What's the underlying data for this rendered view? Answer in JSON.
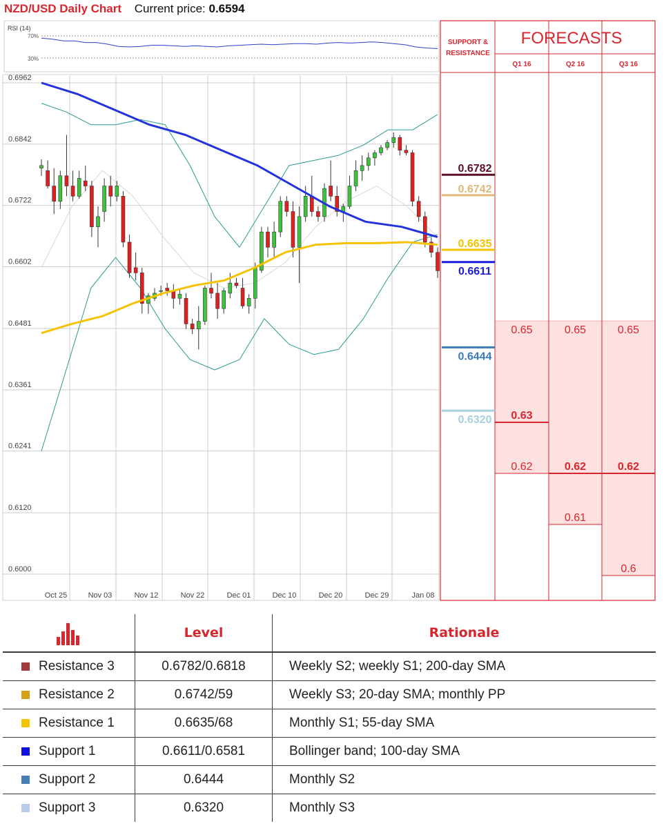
{
  "header": {
    "title": "NZD/USD Daily Chart",
    "price_label": "Current price:",
    "price_value": "0.6594"
  },
  "rsi": {
    "title": "RSI (14)",
    "top_label": "70%",
    "bottom_label": "30%",
    "values": [
      66,
      64,
      61,
      61,
      58,
      58,
      55,
      51,
      50,
      51,
      53,
      53,
      52,
      51,
      52,
      51,
      50,
      52,
      53,
      54,
      55,
      54,
      55,
      56,
      56,
      55,
      57,
      58,
      57,
      58,
      59,
      58,
      56,
      54,
      50,
      48,
      47
    ]
  },
  "columns": {
    "sr_title_1": "SUPPORT &",
    "sr_title_2": "RESISTANCE",
    "forecast_title": "FORECASTS",
    "quarters": [
      "Q1 16",
      "Q2 16",
      "Q3 16"
    ]
  },
  "colors": {
    "accent": "#d7262e",
    "up_candle": "#3dc43d",
    "down_candle": "#e02020",
    "sma200": "#2233dd",
    "sma55": "#f5c200",
    "bollinger": "#2a9a8e",
    "forecast_fill": "#fde0e0"
  },
  "chart_data": {
    "type": "candlestick",
    "x_tick_labels": [
      "Oct 25",
      "Nov 03",
      "Nov 12",
      "Nov 22",
      "Dec 01",
      "Dec 10",
      "Dec 20",
      "Dec 29",
      "Jan 08"
    ],
    "y_tick_labels": [
      "0.6962",
      "0.6842",
      "0.6722",
      "0.6602",
      "0.6481",
      "0.6361",
      "0.6241",
      "0.6120",
      "0.6000"
    ],
    "ylim": [
      0.6,
      0.6962
    ],
    "grid": true,
    "ohlc": [
      [
        0.6795,
        0.6812,
        0.678,
        0.68
      ],
      [
        0.679,
        0.681,
        0.6755,
        0.676
      ],
      [
        0.676,
        0.6795,
        0.6705,
        0.673
      ],
      [
        0.673,
        0.679,
        0.6715,
        0.678
      ],
      [
        0.678,
        0.686,
        0.674,
        0.676
      ],
      [
        0.676,
        0.679,
        0.673,
        0.674
      ],
      [
        0.674,
        0.679,
        0.6735,
        0.6775
      ],
      [
        0.677,
        0.68,
        0.675,
        0.676
      ],
      [
        0.676,
        0.677,
        0.666,
        0.668
      ],
      [
        0.668,
        0.672,
        0.664,
        0.67
      ],
      [
        0.671,
        0.6775,
        0.669,
        0.676
      ],
      [
        0.676,
        0.678,
        0.672,
        0.674
      ],
      [
        0.674,
        0.677,
        0.673,
        0.676
      ],
      [
        0.674,
        0.675,
        0.664,
        0.665
      ],
      [
        0.665,
        0.6665,
        0.658,
        0.659
      ],
      [
        0.66,
        0.663,
        0.6575,
        0.659
      ],
      [
        0.659,
        0.66,
        0.651,
        0.653
      ],
      [
        0.653,
        0.655,
        0.651,
        0.6545
      ],
      [
        0.654,
        0.656,
        0.6535,
        0.655
      ],
      [
        0.6555,
        0.6565,
        0.6545,
        0.6555
      ],
      [
        0.656,
        0.657,
        0.6545,
        0.6555
      ],
      [
        0.6555,
        0.6568,
        0.652,
        0.654
      ],
      [
        0.654,
        0.656,
        0.6528,
        0.6548
      ],
      [
        0.654,
        0.655,
        0.648,
        0.649
      ],
      [
        0.649,
        0.65,
        0.647,
        0.648
      ],
      [
        0.648,
        0.6525,
        0.644,
        0.6495
      ],
      [
        0.6495,
        0.6565,
        0.6488,
        0.656
      ],
      [
        0.656,
        0.659,
        0.654,
        0.655
      ],
      [
        0.655,
        0.657,
        0.65,
        0.652
      ],
      [
        0.652,
        0.656,
        0.651,
        0.6555
      ],
      [
        0.655,
        0.659,
        0.654,
        0.657
      ],
      [
        0.657,
        0.658,
        0.656,
        0.6565
      ],
      [
        0.656,
        0.658,
        0.652,
        0.6525
      ],
      [
        0.6525,
        0.6548,
        0.651,
        0.654
      ],
      [
        0.654,
        0.661,
        0.652,
        0.66
      ],
      [
        0.6595,
        0.668,
        0.659,
        0.667
      ],
      [
        0.667,
        0.668,
        0.662,
        0.664
      ],
      [
        0.664,
        0.669,
        0.662,
        0.667
      ],
      [
        0.667,
        0.674,
        0.666,
        0.673
      ],
      [
        0.673,
        0.674,
        0.67,
        0.671
      ],
      [
        0.671,
        0.673,
        0.662,
        0.664
      ],
      [
        0.664,
        0.672,
        0.657,
        0.67
      ],
      [
        0.67,
        0.676,
        0.669,
        0.674
      ],
      [
        0.674,
        0.678,
        0.67,
        0.671
      ],
      [
        0.671,
        0.672,
        0.669,
        0.67
      ],
      [
        0.67,
        0.6765,
        0.669,
        0.6755
      ],
      [
        0.676,
        0.681,
        0.673,
        0.674
      ],
      [
        0.674,
        0.676,
        0.67,
        0.671
      ],
      [
        0.671,
        0.6725,
        0.669,
        0.672
      ],
      [
        0.672,
        0.678,
        0.6715,
        0.676
      ],
      [
        0.676,
        0.681,
        0.675,
        0.679
      ],
      [
        0.679,
        0.682,
        0.677,
        0.68
      ],
      [
        0.68,
        0.6825,
        0.679,
        0.6815
      ],
      [
        0.6815,
        0.683,
        0.68,
        0.6825
      ],
      [
        0.6825,
        0.684,
        0.682,
        0.6835
      ],
      [
        0.6835,
        0.685,
        0.683,
        0.6845
      ],
      [
        0.6845,
        0.6865,
        0.6835,
        0.6855
      ],
      [
        0.6855,
        0.686,
        0.682,
        0.683
      ],
      [
        0.683,
        0.684,
        0.682,
        0.6825
      ],
      [
        0.6825,
        0.683,
        0.672,
        0.673
      ],
      [
        0.673,
        0.674,
        0.669,
        0.67
      ],
      [
        0.67,
        0.671,
        0.664,
        0.665
      ],
      [
        0.665,
        0.666,
        0.662,
        0.663
      ],
      [
        0.663,
        0.664,
        0.658,
        0.6594
      ]
    ],
    "sma200": [
      0.6962,
      0.694,
      0.691,
      0.688,
      0.686,
      0.683,
      0.68,
      0.676,
      0.672,
      0.669,
      0.668,
      0.666
    ],
    "sma55": [
      0.6472,
      0.649,
      0.6505,
      0.653,
      0.655,
      0.6565,
      0.6575,
      0.66,
      0.663,
      0.6645,
      0.6648,
      0.6648,
      0.665,
      0.6645
    ],
    "sma20": [
      0.66,
      0.672,
      0.679,
      0.674,
      0.666,
      0.659,
      0.656,
      0.657,
      0.661,
      0.668,
      0.673,
      0.676,
      0.672,
      0.666
    ],
    "bollinger_upper": [
      0.6922,
      0.6905,
      0.688,
      0.688,
      0.689,
      0.688,
      0.68,
      0.67,
      0.664,
      0.672,
      0.68,
      0.681,
      0.682,
      0.684,
      0.687,
      0.687,
      0.69
    ],
    "bollinger_lower": [
      0.6241,
      0.64,
      0.656,
      0.662,
      0.656,
      0.648,
      0.642,
      0.64,
      0.642,
      0.65,
      0.645,
      0.643,
      0.644,
      0.65,
      0.658,
      0.665,
      0.6665
    ],
    "support_resistance": [
      {
        "value": "0.6782",
        "color": "#5c0d28"
      },
      {
        "value": "0.6742",
        "color": "#e2b87a"
      },
      {
        "value": "0.6635",
        "color": "#f5c200"
      },
      {
        "value": "0.6611",
        "color": "#1a1ae0"
      },
      {
        "value": "0.6444",
        "color": "#3a7cb8"
      },
      {
        "value": "0.6320",
        "color": "#a8d0dc"
      }
    ],
    "forecasts": [
      {
        "quarter": "Q1 16",
        "high": "0.65",
        "mid": "0.63",
        "low": "0.62"
      },
      {
        "quarter": "Q2 16",
        "high": "0.65",
        "mid": "0.62",
        "low": "0.61"
      },
      {
        "quarter": "Q3 16",
        "high": "0.65",
        "mid": "0.62",
        "low": "0.6"
      }
    ]
  },
  "table": {
    "header_level": "Level",
    "header_rationale": "Rationale",
    "rows": [
      {
        "name": "Resistance 3",
        "level": "0.6782/0.6818",
        "rationale": "Weekly S2; weekly S1; 200-day SMA",
        "color": "#a13a3a"
      },
      {
        "name": "Resistance 2",
        "level": "0.6742/59",
        "rationale": "Weekly S3; 20-day SMA; monthly PP",
        "color": "#d4a017"
      },
      {
        "name": "Resistance 1",
        "level": "0.6635/68",
        "rationale": "Monthly S1; 55-day SMA",
        "color": "#f5c400"
      },
      {
        "name": "Support 1",
        "level": "0.6611/0.6581",
        "rationale": "Bollinger band; 100-day SMA",
        "color": "#1010e0"
      },
      {
        "name": "Support 2",
        "level": "0.6444",
        "rationale": "Monthly S2",
        "color": "#4a7fb5"
      },
      {
        "name": "Support 3",
        "level": "0.6320",
        "rationale": "Monthly S3",
        "color": "#b8cce8"
      }
    ]
  }
}
